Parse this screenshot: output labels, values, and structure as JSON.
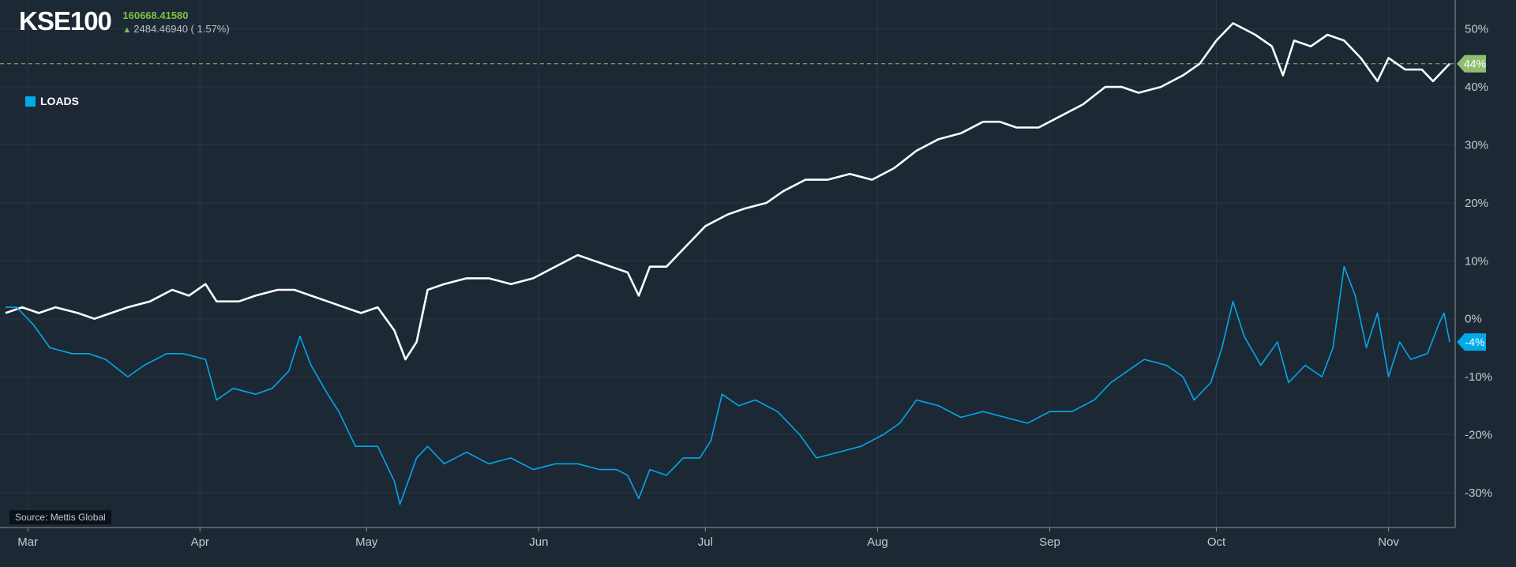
{
  "header": {
    "ticker": "KSE100",
    "price": "160668.41580",
    "change": "2484.46940 ( 1.57%)",
    "arrow_icon": "up-arrow-icon"
  },
  "legend": {
    "label": "LOADS",
    "color": "#00a9e8"
  },
  "source": "Source: Mettis Global",
  "colors": {
    "kse": "#ffffff",
    "loads": "#00a9e8",
    "kse_badge": "#8fbf6e",
    "loads_badge": "#00a9e8",
    "background": "#1d2835"
  },
  "chart_data": {
    "type": "line",
    "title": "",
    "xlabel": "",
    "ylabel": "",
    "x_range": [
      "2024-02-25",
      "2024-11-13"
    ],
    "ylim": [
      -36,
      55
    ],
    "y_axis_side": "right",
    "y_ticks": [
      50,
      40,
      30,
      20,
      10,
      0,
      -10,
      -20,
      -30
    ],
    "y_tick_labels": [
      "50%",
      "40%",
      "30%",
      "20%",
      "10%",
      "0%",
      "-10%",
      "-20%",
      "-30%"
    ],
    "x_ticks": [
      {
        "date": "2024-03-01",
        "label": "Mar"
      },
      {
        "date": "2024-04-01",
        "label": "Apr"
      },
      {
        "date": "2024-05-01",
        "label": "May"
      },
      {
        "date": "2024-06-01",
        "label": "Jun"
      },
      {
        "date": "2024-07-01",
        "label": "Jul"
      },
      {
        "date": "2024-08-01",
        "label": "Aug"
      },
      {
        "date": "2024-09-01",
        "label": "Sep"
      },
      {
        "date": "2024-10-01",
        "label": "Oct"
      },
      {
        "date": "2024-11-01",
        "label": "Nov"
      }
    ],
    "grid": true,
    "reference_line": 44,
    "last_value_labels": [
      {
        "series": "KSE100",
        "label": "44%"
      },
      {
        "series": "LOADS",
        "label": "-4%"
      }
    ],
    "series": [
      {
        "name": "KSE100",
        "color": "#ffffff",
        "points": [
          [
            "2024-02-26",
            1
          ],
          [
            "2024-02-29",
            2
          ],
          [
            "2024-03-03",
            1
          ],
          [
            "2024-03-06",
            2
          ],
          [
            "2024-03-10",
            1
          ],
          [
            "2024-03-13",
            0
          ],
          [
            "2024-03-16",
            1
          ],
          [
            "2024-03-19",
            2
          ],
          [
            "2024-03-23",
            3
          ],
          [
            "2024-03-27",
            5
          ],
          [
            "2024-03-30",
            4
          ],
          [
            "2024-04-02",
            6
          ],
          [
            "2024-04-04",
            3
          ],
          [
            "2024-04-08",
            3
          ],
          [
            "2024-04-11",
            4
          ],
          [
            "2024-04-15",
            5
          ],
          [
            "2024-04-18",
            5
          ],
          [
            "2024-04-21",
            4
          ],
          [
            "2024-04-24",
            3
          ],
          [
            "2024-04-27",
            2
          ],
          [
            "2024-04-30",
            1
          ],
          [
            "2024-05-03",
            2
          ],
          [
            "2024-05-06",
            -2
          ],
          [
            "2024-05-08",
            -7
          ],
          [
            "2024-05-10",
            -4
          ],
          [
            "2024-05-12",
            5
          ],
          [
            "2024-05-15",
            6
          ],
          [
            "2024-05-19",
            7
          ],
          [
            "2024-05-23",
            7
          ],
          [
            "2024-05-27",
            6
          ],
          [
            "2024-05-31",
            7
          ],
          [
            "2024-06-04",
            9
          ],
          [
            "2024-06-08",
            11
          ],
          [
            "2024-06-11",
            10
          ],
          [
            "2024-06-14",
            9
          ],
          [
            "2024-06-17",
            8
          ],
          [
            "2024-06-19",
            4
          ],
          [
            "2024-06-21",
            9
          ],
          [
            "2024-06-24",
            9
          ],
          [
            "2024-06-27",
            12
          ],
          [
            "2024-07-01",
            16
          ],
          [
            "2024-07-05",
            18
          ],
          [
            "2024-07-08",
            19
          ],
          [
            "2024-07-12",
            20
          ],
          [
            "2024-07-15",
            22
          ],
          [
            "2024-07-19",
            24
          ],
          [
            "2024-07-23",
            24
          ],
          [
            "2024-07-27",
            25
          ],
          [
            "2024-07-31",
            24
          ],
          [
            "2024-08-04",
            26
          ],
          [
            "2024-08-08",
            29
          ],
          [
            "2024-08-12",
            31
          ],
          [
            "2024-08-16",
            32
          ],
          [
            "2024-08-20",
            34
          ],
          [
            "2024-08-23",
            34
          ],
          [
            "2024-08-26",
            33
          ],
          [
            "2024-08-30",
            33
          ],
          [
            "2024-09-03",
            35
          ],
          [
            "2024-09-07",
            37
          ],
          [
            "2024-09-11",
            40
          ],
          [
            "2024-09-14",
            40
          ],
          [
            "2024-09-17",
            39
          ],
          [
            "2024-09-21",
            40
          ],
          [
            "2024-09-25",
            42
          ],
          [
            "2024-09-28",
            44
          ],
          [
            "2024-10-01",
            48
          ],
          [
            "2024-10-04",
            51
          ],
          [
            "2024-10-08",
            49
          ],
          [
            "2024-10-11",
            47
          ],
          [
            "2024-10-13",
            42
          ],
          [
            "2024-10-15",
            48
          ],
          [
            "2024-10-18",
            47
          ],
          [
            "2024-10-21",
            49
          ],
          [
            "2024-10-24",
            48
          ],
          [
            "2024-10-27",
            45
          ],
          [
            "2024-10-30",
            41
          ],
          [
            "2024-11-01",
            45
          ],
          [
            "2024-11-04",
            43
          ],
          [
            "2024-11-07",
            43
          ],
          [
            "2024-11-09",
            41
          ],
          [
            "2024-11-12",
            44
          ]
        ]
      },
      {
        "name": "LOADS",
        "color": "#00a9e8",
        "points": [
          [
            "2024-02-26",
            2
          ],
          [
            "2024-02-28",
            2
          ],
          [
            "2024-03-02",
            -1
          ],
          [
            "2024-03-05",
            -5
          ],
          [
            "2024-03-09",
            -6
          ],
          [
            "2024-03-12",
            -6
          ],
          [
            "2024-03-15",
            -7
          ],
          [
            "2024-03-19",
            -10
          ],
          [
            "2024-03-22",
            -8
          ],
          [
            "2024-03-26",
            -6
          ],
          [
            "2024-03-29",
            -6
          ],
          [
            "2024-04-02",
            -7
          ],
          [
            "2024-04-04",
            -14
          ],
          [
            "2024-04-07",
            -12
          ],
          [
            "2024-04-11",
            -13
          ],
          [
            "2024-04-14",
            -12
          ],
          [
            "2024-04-17",
            -9
          ],
          [
            "2024-04-19",
            -3
          ],
          [
            "2024-04-21",
            -8
          ],
          [
            "2024-04-24",
            -13
          ],
          [
            "2024-04-26",
            -16
          ],
          [
            "2024-04-29",
            -22
          ],
          [
            "2024-05-03",
            -22
          ],
          [
            "2024-05-06",
            -28
          ],
          [
            "2024-05-07",
            -32
          ],
          [
            "2024-05-10",
            -24
          ],
          [
            "2024-05-12",
            -22
          ],
          [
            "2024-05-15",
            -25
          ],
          [
            "2024-05-19",
            -23
          ],
          [
            "2024-05-23",
            -25
          ],
          [
            "2024-05-27",
            -24
          ],
          [
            "2024-05-31",
            -26
          ],
          [
            "2024-06-04",
            -25
          ],
          [
            "2024-06-08",
            -25
          ],
          [
            "2024-06-12",
            -26
          ],
          [
            "2024-06-15",
            -26
          ],
          [
            "2024-06-17",
            -27
          ],
          [
            "2024-06-19",
            -31
          ],
          [
            "2024-06-21",
            -26
          ],
          [
            "2024-06-24",
            -27
          ],
          [
            "2024-06-27",
            -24
          ],
          [
            "2024-06-30",
            -24
          ],
          [
            "2024-07-02",
            -21
          ],
          [
            "2024-07-04",
            -13
          ],
          [
            "2024-07-07",
            -15
          ],
          [
            "2024-07-10",
            -14
          ],
          [
            "2024-07-14",
            -16
          ],
          [
            "2024-07-18",
            -20
          ],
          [
            "2024-07-21",
            -24
          ],
          [
            "2024-07-25",
            -23
          ],
          [
            "2024-07-29",
            -22
          ],
          [
            "2024-08-02",
            -20
          ],
          [
            "2024-08-05",
            -18
          ],
          [
            "2024-08-08",
            -14
          ],
          [
            "2024-08-12",
            -15
          ],
          [
            "2024-08-16",
            -17
          ],
          [
            "2024-08-20",
            -16
          ],
          [
            "2024-08-24",
            -17
          ],
          [
            "2024-08-28",
            -18
          ],
          [
            "2024-09-01",
            -16
          ],
          [
            "2024-09-05",
            -16
          ],
          [
            "2024-09-09",
            -14
          ],
          [
            "2024-09-12",
            -11
          ],
          [
            "2024-09-15",
            -9
          ],
          [
            "2024-09-18",
            -7
          ],
          [
            "2024-09-22",
            -8
          ],
          [
            "2024-09-25",
            -10
          ],
          [
            "2024-09-27",
            -14
          ],
          [
            "2024-09-30",
            -11
          ],
          [
            "2024-10-02",
            -5
          ],
          [
            "2024-10-04",
            3
          ],
          [
            "2024-10-06",
            -3
          ],
          [
            "2024-10-09",
            -8
          ],
          [
            "2024-10-12",
            -4
          ],
          [
            "2024-10-14",
            -11
          ],
          [
            "2024-10-17",
            -8
          ],
          [
            "2024-10-20",
            -10
          ],
          [
            "2024-10-22",
            -5
          ],
          [
            "2024-10-24",
            9
          ],
          [
            "2024-10-26",
            4
          ],
          [
            "2024-10-28",
            -5
          ],
          [
            "2024-10-30",
            1
          ],
          [
            "2024-11-01",
            -10
          ],
          [
            "2024-11-03",
            -4
          ],
          [
            "2024-11-05",
            -7
          ],
          [
            "2024-11-08",
            -6
          ],
          [
            "2024-11-10",
            -1
          ],
          [
            "2024-11-11",
            1
          ],
          [
            "2024-11-12",
            -4
          ]
        ]
      }
    ]
  }
}
